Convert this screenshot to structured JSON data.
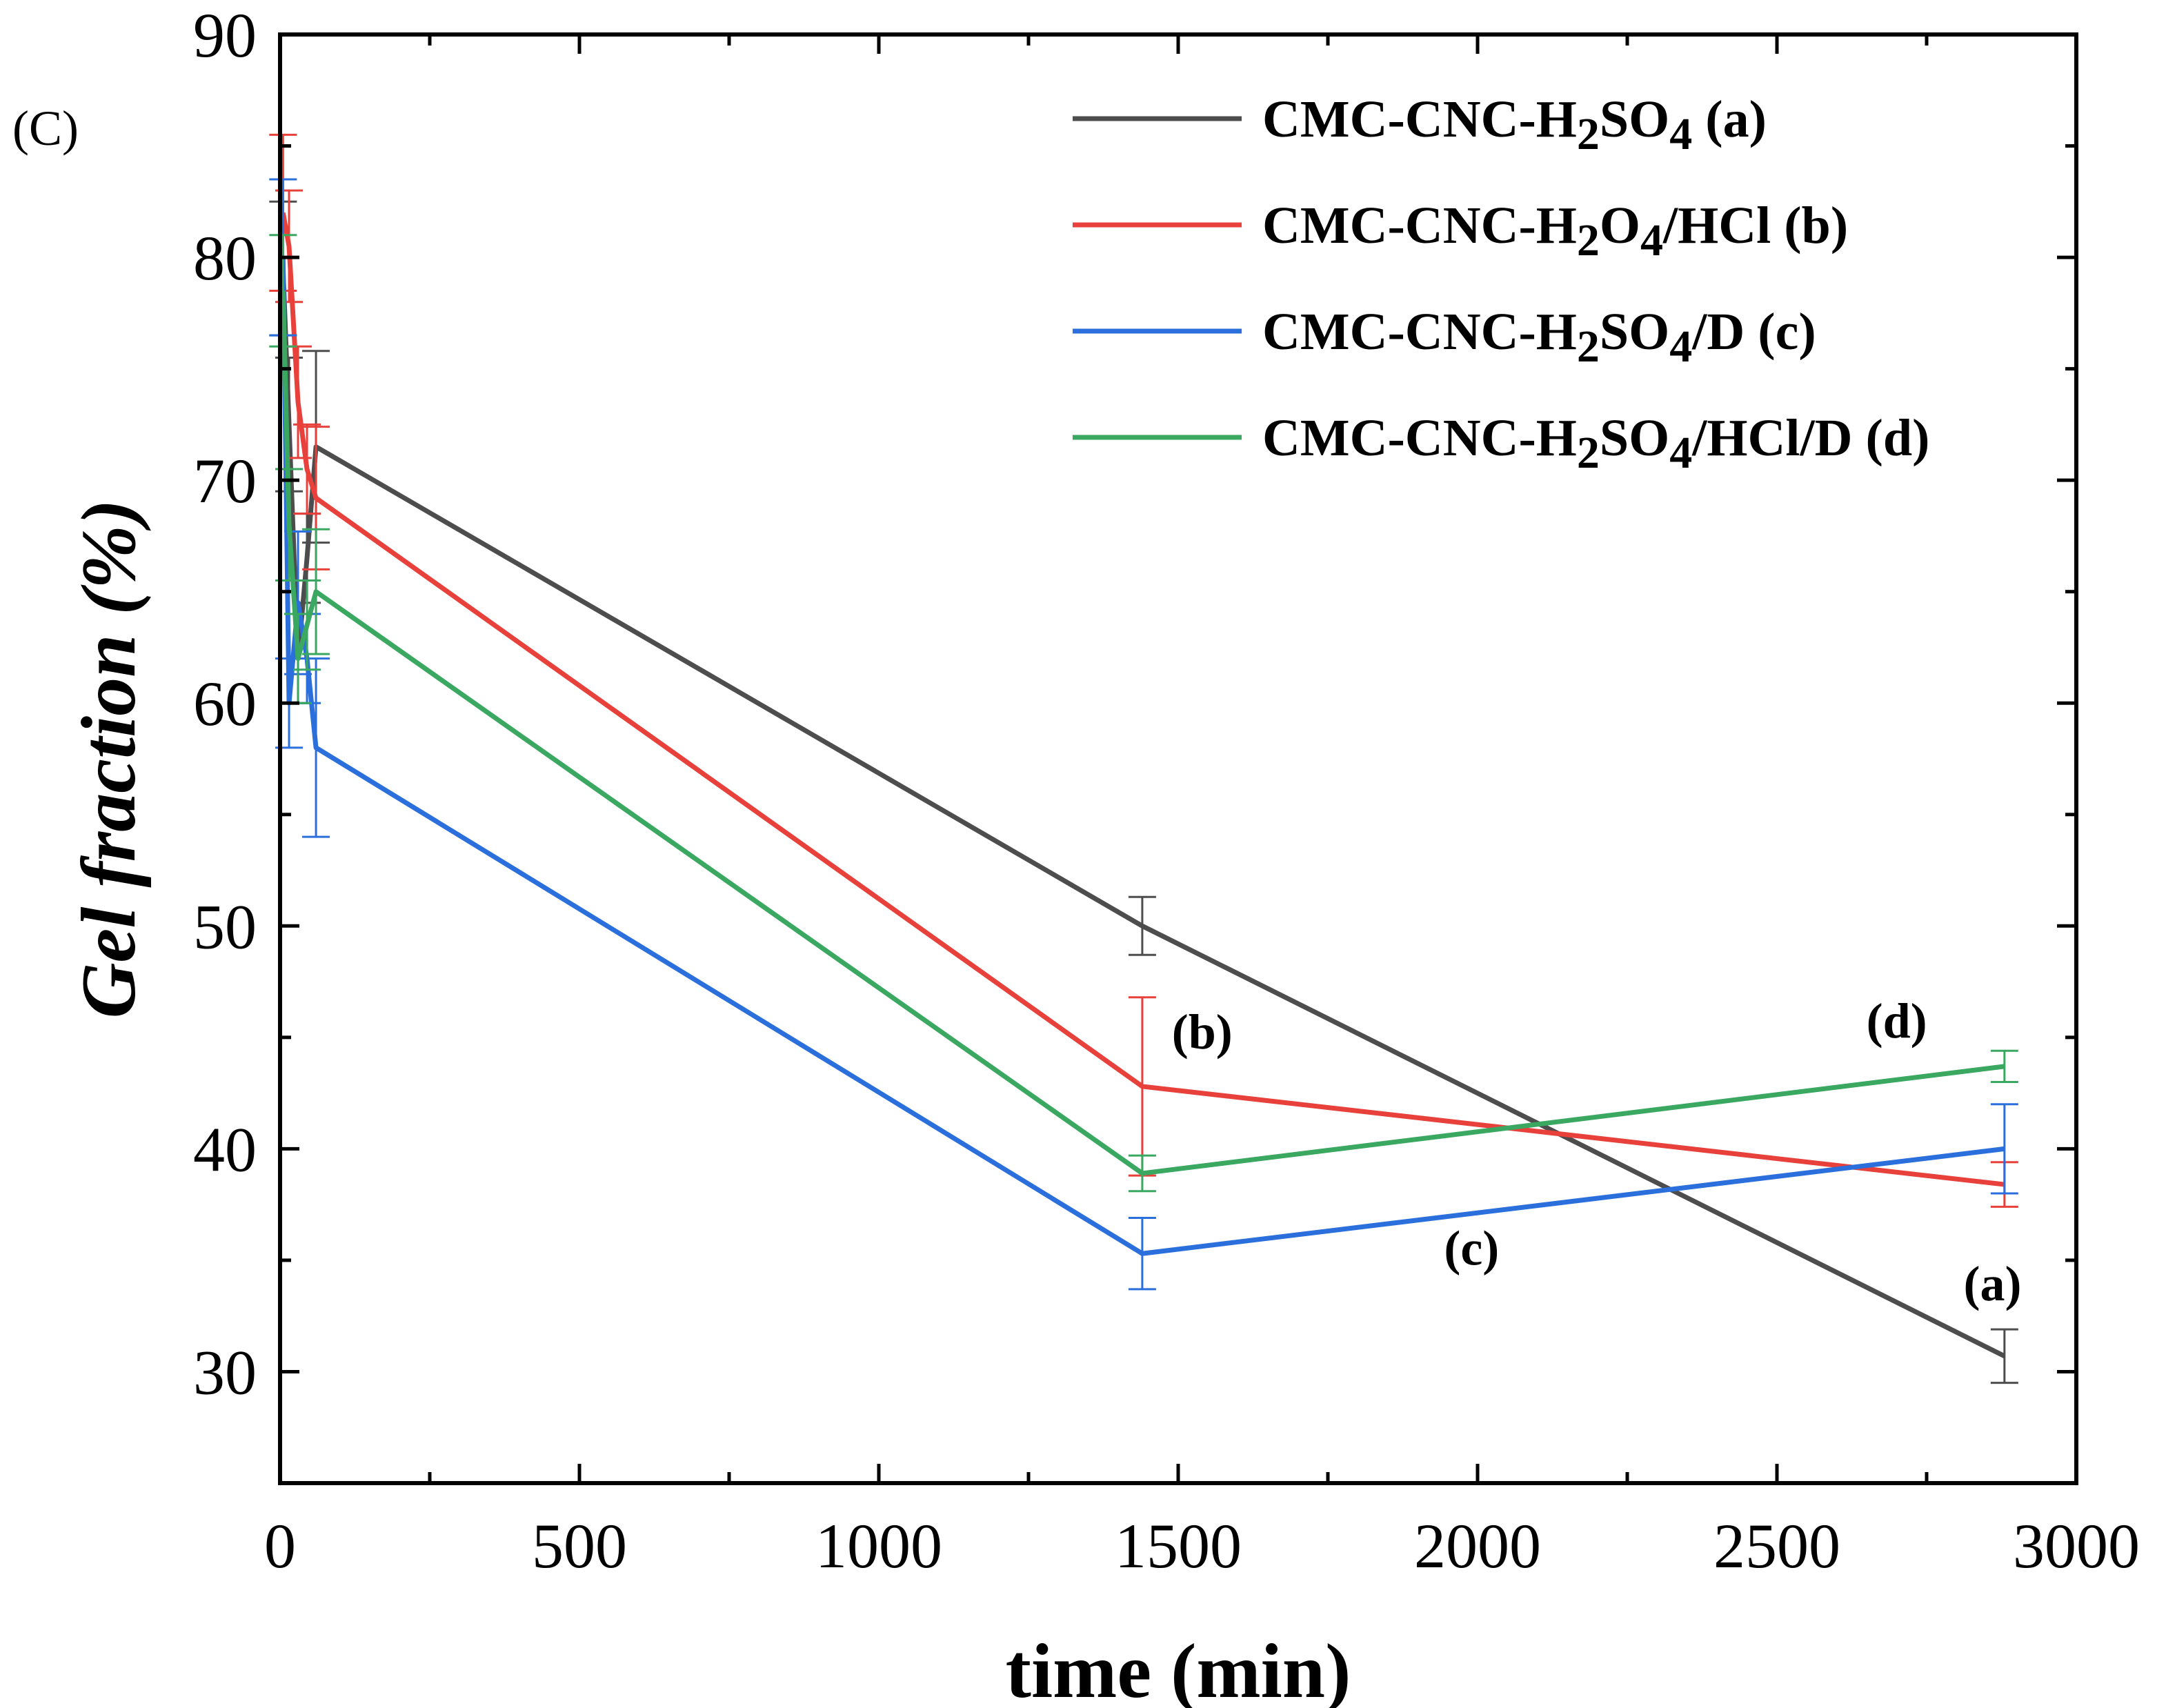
{
  "chart_data": {
    "type": "line",
    "panel_label": "(C)",
    "xlabel": "time (min)",
    "ylabel": "Gel fraction (%)",
    "xlim": [
      0,
      3000
    ],
    "ylim": [
      25,
      90
    ],
    "x_ticks": [
      "0",
      "500",
      "1000",
      "1500",
      "2000",
      "2500",
      "3000"
    ],
    "y_ticks": [
      "30",
      "40",
      "50",
      "60",
      "70",
      "80",
      "90"
    ],
    "series": [
      {
        "name": "CMC-CNC-H2SO4 (a)",
        "legend": {
          "pre": "CMC-CNC-H",
          "sub1": "2",
          "mid": "SO",
          "sub2": "4",
          "post": " (a)"
        },
        "color": "#4d4d4d",
        "x": [
          5,
          15,
          30,
          45,
          60,
          1440,
          2880
        ],
        "y": [
          79.5,
          72.5,
          62.0,
          66.5,
          71.5,
          50.0,
          30.7
        ],
        "err": [
          3.0,
          3.0,
          2.0,
          2.0,
          4.3,
          1.3,
          1.2
        ],
        "label": "(a)"
      },
      {
        "name": "CMC-CNC-H2O4/HCl (b)",
        "legend": {
          "pre": "CMC-CNC-H",
          "sub1": "2",
          "mid": "O",
          "sub2": "4",
          "post": "/HCl (b)"
        },
        "color": "#e8403a",
        "x": [
          5,
          15,
          30,
          45,
          60,
          1440,
          2880
        ],
        "y": [
          82.0,
          80.5,
          73.5,
          70.5,
          69.2,
          42.8,
          38.4
        ],
        "err": [
          3.5,
          2.5,
          2.5,
          2.0,
          3.2,
          4.0,
          1.0
        ],
        "label": "(b)"
      },
      {
        "name": "CMC-CNC-H2SO4/D (c)",
        "legend": {
          "pre": "CMC-CNC-H",
          "sub1": "2",
          "mid": "SO",
          "sub2": "4",
          "post": "/D (c)"
        },
        "color": "#2a6fdb",
        "x": [
          5,
          15,
          30,
          45,
          60,
          1440,
          2880
        ],
        "y": [
          80.0,
          60.0,
          64.5,
          62.0,
          58.0,
          35.3,
          40.0
        ],
        "err": [
          3.5,
          2.0,
          3.2,
          2.0,
          4.0,
          1.6,
          2.0
        ],
        "label": "(c)"
      },
      {
        "name": "CMC-CNC-H2SO4/HCl/D (d)",
        "legend": {
          "pre": "CMC-CNC-H",
          "sub1": "2",
          "mid": "SO",
          "sub2": "4",
          "post": "/HCl/D (d)"
        },
        "color": "#3aa860",
        "x": [
          5,
          15,
          30,
          45,
          60,
          1440,
          2880
        ],
        "y": [
          78.5,
          68.0,
          62.0,
          63.5,
          65.0,
          38.9,
          43.7
        ],
        "err": [
          2.5,
          2.5,
          2.0,
          2.0,
          2.8,
          0.8,
          0.7
        ],
        "label": "(d)"
      }
    ],
    "annotations": [
      {
        "text": "(a)",
        "x": 2860,
        "y": 33.2
      },
      {
        "text": "(b)",
        "x": 1540,
        "y": 44.5
      },
      {
        "text": "(c)",
        "x": 1990,
        "y": 34.8
      },
      {
        "text": "(d)",
        "x": 2700,
        "y": 45.0
      }
    ],
    "legend_position": "top-right",
    "grid": false
  }
}
